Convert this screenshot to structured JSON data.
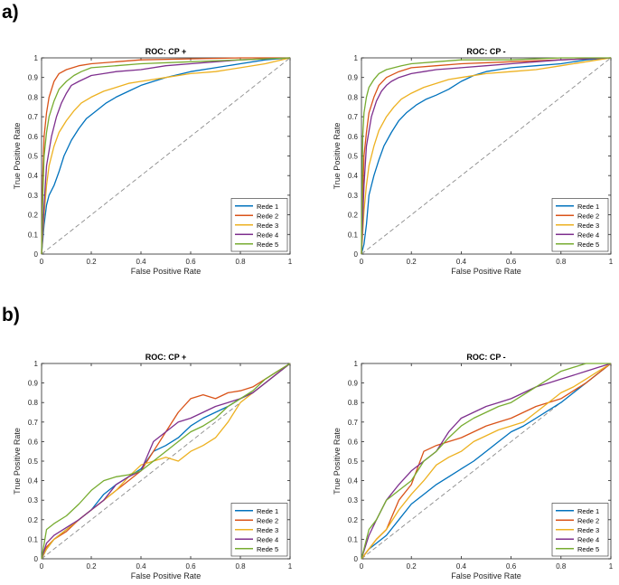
{
  "panel_labels": [
    "a)",
    "b)"
  ],
  "colors": {
    "Rede 1": "#0072BD",
    "Rede 2": "#D95319",
    "Rede 3": "#EDB120",
    "Rede 4": "#7E2F8E",
    "Rede 5": "#77AC30",
    "chance": "#8c8c8c",
    "axis": "#262626"
  },
  "chart_data": [
    {
      "type": "line",
      "panel": "a)",
      "title": "ROC: CP +",
      "xlabel": "False Positive Rate",
      "ylabel": "True Positive Rate",
      "xlim": [
        0,
        1
      ],
      "ylim": [
        0,
        1
      ],
      "xticks": [
        "0",
        "0.2",
        "0.4",
        "0.6",
        "0.8",
        "1"
      ],
      "yticks": [
        "0",
        "0.1",
        "0.2",
        "0.3",
        "0.4",
        "0.5",
        "0.6",
        "0.7",
        "0.8",
        "0.9",
        "1"
      ],
      "chance_line": true,
      "legend": "bottom-right",
      "series": [
        {
          "name": "Rede 1",
          "x": [
            0,
            0.01,
            0.02,
            0.03,
            0.05,
            0.07,
            0.09,
            0.12,
            0.15,
            0.18,
            0.22,
            0.26,
            0.3,
            0.35,
            0.4,
            0.45,
            0.5,
            0.6,
            0.7,
            0.8,
            0.9,
            1
          ],
          "y": [
            0,
            0.15,
            0.25,
            0.3,
            0.35,
            0.42,
            0.5,
            0.58,
            0.64,
            0.69,
            0.73,
            0.77,
            0.8,
            0.83,
            0.86,
            0.88,
            0.9,
            0.93,
            0.95,
            0.97,
            0.99,
            1
          ]
        },
        {
          "name": "Rede 2",
          "x": [
            0,
            0.005,
            0.01,
            0.02,
            0.03,
            0.05,
            0.07,
            0.1,
            0.15,
            0.2,
            0.3,
            0.4,
            0.6,
            0.8,
            1
          ],
          "y": [
            0,
            0.4,
            0.6,
            0.72,
            0.8,
            0.88,
            0.92,
            0.94,
            0.96,
            0.97,
            0.98,
            0.99,
            0.995,
            1,
            1
          ]
        },
        {
          "name": "Rede 3",
          "x": [
            0,
            0.01,
            0.02,
            0.03,
            0.05,
            0.07,
            0.1,
            0.13,
            0.16,
            0.2,
            0.25,
            0.3,
            0.35,
            0.4,
            0.5,
            0.6,
            0.7,
            0.8,
            0.9,
            1
          ],
          "y": [
            0,
            0.2,
            0.35,
            0.45,
            0.55,
            0.62,
            0.68,
            0.73,
            0.77,
            0.8,
            0.83,
            0.85,
            0.87,
            0.88,
            0.9,
            0.92,
            0.93,
            0.95,
            0.97,
            1
          ]
        },
        {
          "name": "Rede 4",
          "x": [
            0,
            0.01,
            0.02,
            0.04,
            0.06,
            0.08,
            0.1,
            0.12,
            0.15,
            0.2,
            0.25,
            0.3,
            0.4,
            0.5,
            0.6,
            0.8,
            1
          ],
          "y": [
            0,
            0.25,
            0.45,
            0.6,
            0.7,
            0.77,
            0.82,
            0.86,
            0.88,
            0.91,
            0.92,
            0.93,
            0.94,
            0.96,
            0.97,
            0.99,
            1
          ]
        },
        {
          "name": "Rede 5",
          "x": [
            0,
            0.005,
            0.01,
            0.02,
            0.03,
            0.05,
            0.07,
            0.1,
            0.13,
            0.16,
            0.2,
            0.3,
            0.4,
            0.6,
            0.8,
            1
          ],
          "y": [
            0,
            0.3,
            0.5,
            0.62,
            0.7,
            0.78,
            0.84,
            0.88,
            0.91,
            0.93,
            0.95,
            0.96,
            0.97,
            0.98,
            0.99,
            1
          ]
        }
      ]
    },
    {
      "type": "line",
      "panel": "a)",
      "title": "ROC: CP -",
      "xlabel": "False Positive Rate",
      "ylabel": "True Positive Rate",
      "xlim": [
        0,
        1
      ],
      "ylim": [
        0,
        1
      ],
      "xticks": [
        "0",
        "0.2",
        "0.4",
        "0.6",
        "0.8",
        "1"
      ],
      "yticks": [
        "0",
        "0.1",
        "0.2",
        "0.3",
        "0.4",
        "0.5",
        "0.6",
        "0.7",
        "0.8",
        "0.9",
        "1"
      ],
      "chance_line": true,
      "legend": "bottom-right",
      "series": [
        {
          "name": "Rede 1",
          "x": [
            0,
            0.01,
            0.02,
            0.03,
            0.05,
            0.07,
            0.09,
            0.12,
            0.15,
            0.18,
            0.22,
            0.26,
            0.3,
            0.35,
            0.4,
            0.45,
            0.5,
            0.55,
            0.6,
            0.7,
            0.8,
            0.9,
            1
          ],
          "y": [
            0,
            0.05,
            0.15,
            0.3,
            0.4,
            0.48,
            0.55,
            0.62,
            0.68,
            0.72,
            0.76,
            0.79,
            0.81,
            0.84,
            0.88,
            0.91,
            0.93,
            0.94,
            0.95,
            0.96,
            0.97,
            0.99,
            1
          ]
        },
        {
          "name": "Rede 2",
          "x": [
            0,
            0.005,
            0.01,
            0.02,
            0.03,
            0.05,
            0.07,
            0.1,
            0.15,
            0.2,
            0.3,
            0.4,
            0.6,
            0.8,
            1
          ],
          "y": [
            0,
            0.3,
            0.5,
            0.62,
            0.72,
            0.8,
            0.86,
            0.9,
            0.93,
            0.95,
            0.96,
            0.97,
            0.98,
            0.99,
            1
          ]
        },
        {
          "name": "Rede 3",
          "x": [
            0,
            0.01,
            0.02,
            0.03,
            0.05,
            0.07,
            0.1,
            0.13,
            0.16,
            0.2,
            0.25,
            0.3,
            0.35,
            0.4,
            0.5,
            0.6,
            0.7,
            0.8,
            0.9,
            1
          ],
          "y": [
            0,
            0.22,
            0.35,
            0.45,
            0.55,
            0.63,
            0.7,
            0.75,
            0.79,
            0.82,
            0.85,
            0.87,
            0.89,
            0.9,
            0.92,
            0.93,
            0.94,
            0.96,
            0.98,
            1
          ]
        },
        {
          "name": "Rede 4",
          "x": [
            0,
            0.01,
            0.02,
            0.04,
            0.06,
            0.08,
            0.1,
            0.12,
            0.15,
            0.2,
            0.25,
            0.3,
            0.4,
            0.5,
            0.6,
            0.8,
            1
          ],
          "y": [
            0,
            0.35,
            0.55,
            0.7,
            0.78,
            0.83,
            0.86,
            0.88,
            0.9,
            0.92,
            0.93,
            0.94,
            0.95,
            0.96,
            0.97,
            0.99,
            1
          ]
        },
        {
          "name": "Rede 5",
          "x": [
            0,
            0.005,
            0.01,
            0.02,
            0.03,
            0.05,
            0.07,
            0.1,
            0.13,
            0.16,
            0.2,
            0.3,
            0.4,
            0.6,
            0.8,
            1
          ],
          "y": [
            0,
            0.6,
            0.72,
            0.8,
            0.85,
            0.89,
            0.92,
            0.94,
            0.95,
            0.96,
            0.97,
            0.98,
            0.99,
            0.99,
            1,
            1
          ]
        }
      ]
    },
    {
      "type": "line",
      "panel": "b)",
      "title": "ROC: CP +",
      "xlabel": "False Positive Rate",
      "ylabel": "True Positive Rate",
      "xlim": [
        0,
        1
      ],
      "ylim": [
        0,
        1
      ],
      "xticks": [
        "0",
        "0.2",
        "0.4",
        "0.6",
        "0.8",
        "1"
      ],
      "yticks": [
        "0",
        "0.1",
        "0.2",
        "0.3",
        "0.4",
        "0.5",
        "0.6",
        "0.7",
        "0.8",
        "0.9",
        "1"
      ],
      "chance_line": true,
      "legend": "bottom-right",
      "series": [
        {
          "name": "Rede 1",
          "x": [
            0,
            0.02,
            0.05,
            0.1,
            0.15,
            0.2,
            0.25,
            0.3,
            0.35,
            0.4,
            0.45,
            0.5,
            0.55,
            0.6,
            0.65,
            0.7,
            0.75,
            0.8,
            0.85,
            0.9,
            0.95,
            1
          ],
          "y": [
            0,
            0.05,
            0.1,
            0.15,
            0.2,
            0.25,
            0.33,
            0.38,
            0.42,
            0.46,
            0.55,
            0.58,
            0.62,
            0.68,
            0.72,
            0.75,
            0.78,
            0.82,
            0.85,
            0.9,
            0.95,
            1
          ]
        },
        {
          "name": "Rede 2",
          "x": [
            0,
            0.02,
            0.05,
            0.1,
            0.15,
            0.2,
            0.25,
            0.3,
            0.35,
            0.4,
            0.45,
            0.5,
            0.55,
            0.6,
            0.65,
            0.7,
            0.75,
            0.8,
            0.85,
            0.9,
            0.95,
            1
          ],
          "y": [
            0,
            0.06,
            0.1,
            0.14,
            0.2,
            0.25,
            0.3,
            0.35,
            0.4,
            0.45,
            0.55,
            0.65,
            0.75,
            0.82,
            0.84,
            0.82,
            0.85,
            0.86,
            0.88,
            0.92,
            0.96,
            1
          ]
        },
        {
          "name": "Rede 3",
          "x": [
            0,
            0.02,
            0.05,
            0.1,
            0.15,
            0.2,
            0.25,
            0.3,
            0.35,
            0.4,
            0.45,
            0.5,
            0.55,
            0.6,
            0.65,
            0.7,
            0.75,
            0.8,
            0.85,
            0.9,
            0.95,
            1
          ],
          "y": [
            0,
            0.05,
            0.1,
            0.15,
            0.2,
            0.25,
            0.3,
            0.35,
            0.42,
            0.48,
            0.5,
            0.52,
            0.5,
            0.55,
            0.58,
            0.62,
            0.7,
            0.8,
            0.85,
            0.9,
            0.95,
            1
          ]
        },
        {
          "name": "Rede 4",
          "x": [
            0,
            0.02,
            0.05,
            0.1,
            0.15,
            0.2,
            0.25,
            0.3,
            0.35,
            0.4,
            0.45,
            0.5,
            0.55,
            0.6,
            0.65,
            0.7,
            0.75,
            0.8,
            0.85,
            0.9,
            0.95,
            1
          ],
          "y": [
            0,
            0.08,
            0.12,
            0.16,
            0.2,
            0.25,
            0.3,
            0.38,
            0.42,
            0.45,
            0.6,
            0.65,
            0.7,
            0.72,
            0.75,
            0.78,
            0.8,
            0.82,
            0.85,
            0.9,
            0.95,
            1
          ]
        },
        {
          "name": "Rede 5",
          "x": [
            0,
            0.02,
            0.05,
            0.1,
            0.15,
            0.2,
            0.25,
            0.3,
            0.35,
            0.4,
            0.45,
            0.5,
            0.55,
            0.6,
            0.65,
            0.7,
            0.75,
            0.8,
            0.85,
            0.9,
            0.95,
            1
          ],
          "y": [
            0,
            0.15,
            0.18,
            0.22,
            0.28,
            0.35,
            0.4,
            0.42,
            0.43,
            0.45,
            0.5,
            0.55,
            0.6,
            0.65,
            0.68,
            0.72,
            0.78,
            0.82,
            0.86,
            0.92,
            0.96,
            1
          ]
        }
      ]
    },
    {
      "type": "line",
      "panel": "b)",
      "title": "ROC: CP -",
      "xlabel": "False Positive Rate",
      "ylabel": "True Positive Rate",
      "xlim": [
        0,
        1
      ],
      "ylim": [
        0,
        1
      ],
      "xticks": [
        "0",
        "0.2",
        "0.4",
        "0.6",
        "0.8",
        "1"
      ],
      "yticks": [
        "0",
        "0.1",
        "0.2",
        "0.3",
        "0.4",
        "0.5",
        "0.6",
        "0.7",
        "0.8",
        "0.9",
        "1"
      ],
      "chance_line": true,
      "legend": "bottom-right",
      "series": [
        {
          "name": "Rede 1",
          "x": [
            0,
            0.03,
            0.06,
            0.1,
            0.15,
            0.2,
            0.25,
            0.3,
            0.35,
            0.4,
            0.45,
            0.5,
            0.55,
            0.6,
            0.65,
            0.7,
            0.75,
            0.8,
            0.85,
            0.9,
            0.95,
            1
          ],
          "y": [
            0,
            0.05,
            0.08,
            0.12,
            0.2,
            0.28,
            0.33,
            0.38,
            0.42,
            0.46,
            0.5,
            0.55,
            0.6,
            0.65,
            0.68,
            0.72,
            0.76,
            0.8,
            0.85,
            0.9,
            0.95,
            1
          ]
        },
        {
          "name": "Rede 2",
          "x": [
            0,
            0.03,
            0.06,
            0.1,
            0.15,
            0.2,
            0.25,
            0.3,
            0.35,
            0.4,
            0.45,
            0.5,
            0.55,
            0.6,
            0.65,
            0.7,
            0.75,
            0.8,
            0.85,
            0.9,
            0.95,
            1
          ],
          "y": [
            0,
            0.05,
            0.1,
            0.15,
            0.3,
            0.38,
            0.55,
            0.58,
            0.6,
            0.62,
            0.65,
            0.68,
            0.7,
            0.72,
            0.75,
            0.78,
            0.8,
            0.82,
            0.86,
            0.9,
            0.95,
            1
          ]
        },
        {
          "name": "Rede 3",
          "x": [
            0,
            0.03,
            0.06,
            0.1,
            0.15,
            0.2,
            0.25,
            0.3,
            0.35,
            0.4,
            0.45,
            0.5,
            0.55,
            0.6,
            0.65,
            0.7,
            0.75,
            0.8,
            0.85,
            0.9,
            0.95,
            1
          ],
          "y": [
            0,
            0.05,
            0.1,
            0.15,
            0.25,
            0.33,
            0.4,
            0.48,
            0.52,
            0.55,
            0.6,
            0.63,
            0.66,
            0.68,
            0.7,
            0.75,
            0.8,
            0.85,
            0.88,
            0.92,
            0.96,
            1
          ]
        },
        {
          "name": "Rede 4",
          "x": [
            0,
            0.03,
            0.06,
            0.1,
            0.15,
            0.2,
            0.25,
            0.3,
            0.35,
            0.4,
            0.45,
            0.5,
            0.55,
            0.6,
            0.65,
            0.7,
            0.75,
            0.8,
            0.85,
            0.9,
            0.95,
            1
          ],
          "y": [
            0,
            0.12,
            0.2,
            0.3,
            0.38,
            0.45,
            0.5,
            0.55,
            0.65,
            0.72,
            0.75,
            0.78,
            0.8,
            0.82,
            0.85,
            0.88,
            0.9,
            0.92,
            0.94,
            0.96,
            0.98,
            1
          ]
        },
        {
          "name": "Rede 5",
          "x": [
            0,
            0.03,
            0.06,
            0.1,
            0.15,
            0.2,
            0.25,
            0.3,
            0.35,
            0.4,
            0.45,
            0.5,
            0.55,
            0.6,
            0.65,
            0.7,
            0.75,
            0.8,
            0.85,
            0.9,
            0.95,
            1
          ],
          "y": [
            0,
            0.15,
            0.2,
            0.3,
            0.35,
            0.4,
            0.5,
            0.55,
            0.62,
            0.68,
            0.72,
            0.75,
            0.78,
            0.8,
            0.84,
            0.88,
            0.92,
            0.96,
            0.98,
            1,
            1,
            1
          ]
        }
      ]
    }
  ]
}
